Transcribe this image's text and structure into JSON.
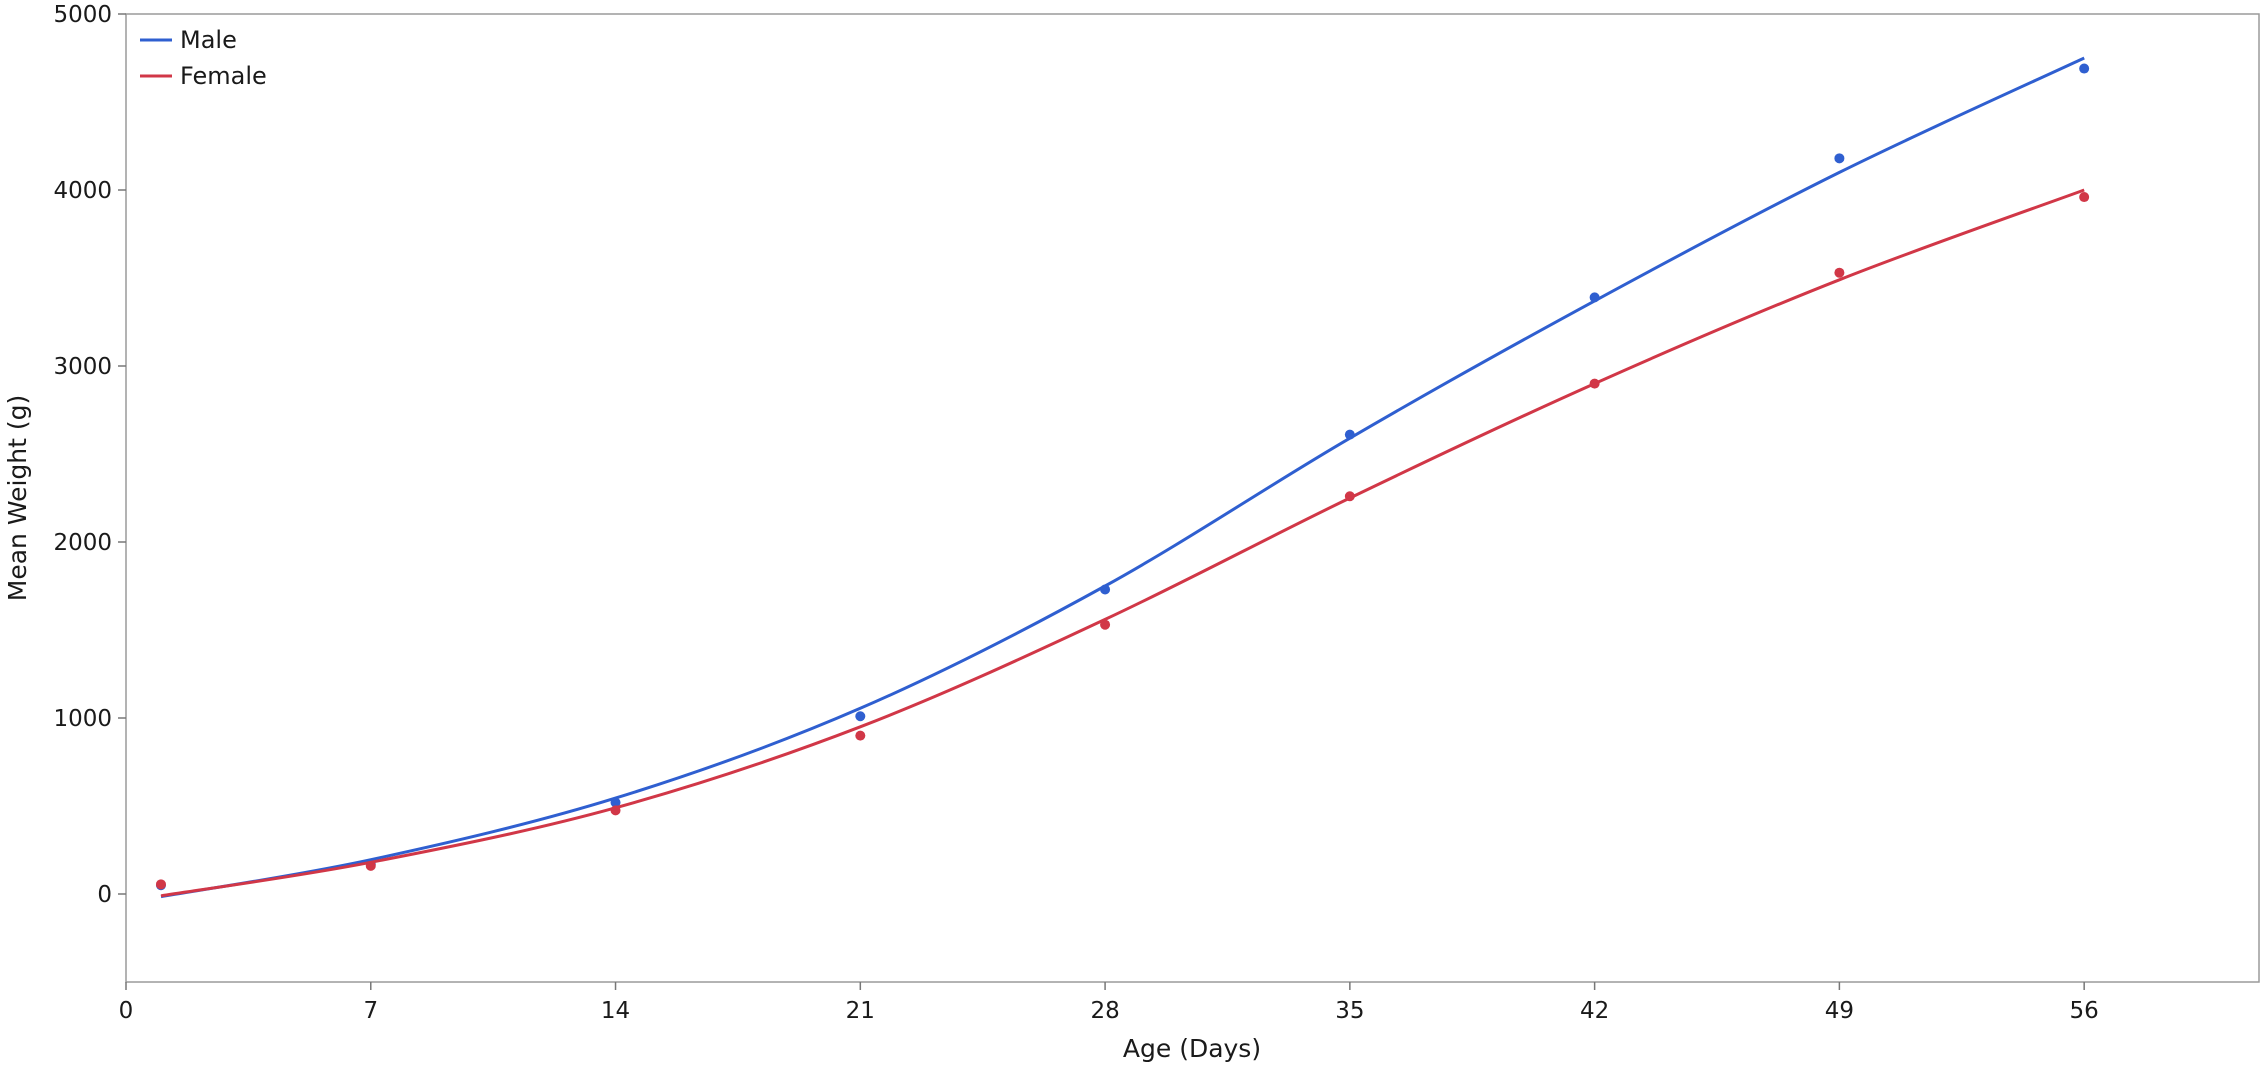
{
  "chart_data": {
    "type": "line",
    "title": "",
    "xlabel": "Age (Days)",
    "ylabel": "Mean Weight (g)",
    "xlim": [
      0,
      61
    ],
    "ylim": [
      -500,
      5000
    ],
    "xticks": [
      0,
      7,
      14,
      21,
      28,
      35,
      42,
      49,
      56
    ],
    "yticks": [
      0,
      1000,
      2000,
      3000,
      4000,
      5000
    ],
    "grid": false,
    "legend_position": "top-left",
    "series": [
      {
        "name": "Male",
        "color": "#2f5fd0",
        "points": [
          {
            "x": 1,
            "y": 50
          },
          {
            "x": 7,
            "y": 170
          },
          {
            "x": 14,
            "y": 520
          },
          {
            "x": 21,
            "y": 1010
          },
          {
            "x": 28,
            "y": 1730
          },
          {
            "x": 35,
            "y": 2610
          },
          {
            "x": 42,
            "y": 3390
          },
          {
            "x": 49,
            "y": 4180
          },
          {
            "x": 56,
            "y": 4690
          }
        ],
        "fit": [
          {
            "x": 1,
            "y": -15
          },
          {
            "x": 7,
            "y": 195
          },
          {
            "x": 14,
            "y": 545
          },
          {
            "x": 21,
            "y": 1055
          },
          {
            "x": 28,
            "y": 1750
          },
          {
            "x": 35,
            "y": 2590
          },
          {
            "x": 42,
            "y": 3370
          },
          {
            "x": 49,
            "y": 4100
          },
          {
            "x": 56,
            "y": 4750
          }
        ]
      },
      {
        "name": "Female",
        "color": "#d13747",
        "points": [
          {
            "x": 1,
            "y": 55
          },
          {
            "x": 7,
            "y": 160
          },
          {
            "x": 14,
            "y": 475
          },
          {
            "x": 21,
            "y": 900
          },
          {
            "x": 28,
            "y": 1530
          },
          {
            "x": 35,
            "y": 2260
          },
          {
            "x": 42,
            "y": 2900
          },
          {
            "x": 49,
            "y": 3530
          },
          {
            "x": 56,
            "y": 3960
          }
        ],
        "fit": [
          {
            "x": 1,
            "y": -10
          },
          {
            "x": 7,
            "y": 180
          },
          {
            "x": 14,
            "y": 490
          },
          {
            "x": 21,
            "y": 950
          },
          {
            "x": 28,
            "y": 1560
          },
          {
            "x": 35,
            "y": 2250
          },
          {
            "x": 42,
            "y": 2900
          },
          {
            "x": 49,
            "y": 3490
          },
          {
            "x": 56,
            "y": 4000
          }
        ]
      }
    ]
  }
}
